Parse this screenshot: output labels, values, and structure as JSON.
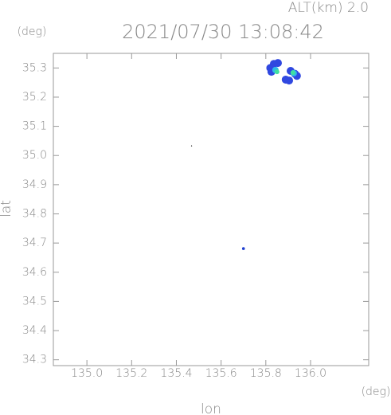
{
  "chart_data": {
    "type": "scatter",
    "title": "2021/07/30 13:08:42",
    "subtitle": "ALT(km) 2.0",
    "x_label": "lon",
    "y_label": "lat",
    "x_unit": "(deg)",
    "y_unit": "(deg)",
    "xlim": [
      134.85,
      136.26
    ],
    "ylim": [
      34.28,
      35.35
    ],
    "xticks": [
      {
        "value": 135,
        "label": "135.0"
      },
      135.2,
      135.4,
      135.6,
      135.8,
      {
        "value": 136,
        "label": "136.0"
      }
    ],
    "yticks": [
      34.3,
      34.4,
      34.5,
      34.6,
      34.7,
      34.8,
      34.9,
      {
        "value": 35,
        "label": "35.0"
      },
      35.1,
      35.2,
      35.3
    ],
    "series": [
      {
        "color": "#3048e0",
        "marker_size": 5,
        "x": [
          135.836,
          135.854,
          135.825,
          135.911,
          135.939,
          135.889,
          135.904,
          135.82,
          135.93
        ],
        "y": [
          35.314,
          35.317,
          35.287,
          35.29,
          35.273,
          35.26,
          35.257,
          35.3,
          35.28
        ]
      },
      {
        "color": "#30b8e8",
        "marker_size": 4,
        "x": [
          135.843,
          135.925
        ],
        "y": [
          35.293,
          35.282
        ]
      },
      {
        "color": "#40e0a0",
        "marker_size": 3,
        "x": [
          135.85,
          135.921
        ],
        "y": [
          35.287,
          35.284
        ]
      },
      {
        "color": "#2040d0",
        "marker_size": 1.8,
        "x": [
          135.7
        ],
        "y": [
          34.681
        ]
      },
      {
        "color": "#000000",
        "marker_size": 0.6,
        "x": [
          135.468
        ],
        "y": [
          35.033
        ]
      }
    ]
  }
}
